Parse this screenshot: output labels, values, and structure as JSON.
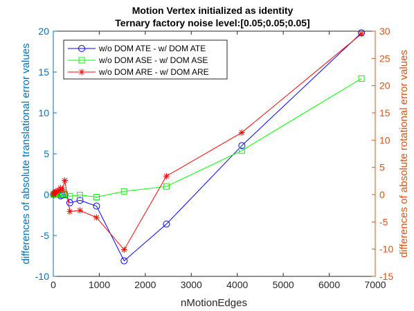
{
  "chart_data": {
    "type": "line",
    "title": "Motion Vertex initialized as identity",
    "subtitle": "Ternary factory noise level:[0.05;0.05;0.05]",
    "xlabel": "nMotionEdges",
    "ylabel_left": "differences of absolute translational error values",
    "ylabel_right": "differences of  absolute rotational error values",
    "xlim": [
      0,
      7000
    ],
    "ylim_left": [
      -10,
      20
    ],
    "ylim_right": [
      -15,
      30
    ],
    "x_ticks": [
      "0",
      "1000",
      "2000",
      "3000",
      "4000",
      "5000",
      "6000",
      "7000"
    ],
    "y_ticks_left": [
      "-10",
      "-5",
      "0",
      "5",
      "10",
      "15",
      "20"
    ],
    "y_ticks_right": [
      "-15",
      "-10",
      "-5",
      "0",
      "5",
      "10",
      "15",
      "20",
      "25",
      "30"
    ],
    "grid": false,
    "legend_position": "top-left",
    "series": [
      {
        "name": "w/o DOM ATE - w/ DOM ATE",
        "axis": "left",
        "color": "#0000FF",
        "marker": "circle",
        "x": [
          5,
          15,
          30,
          50,
          80,
          120,
          160,
          200,
          250,
          360,
          580,
          940,
          1540,
          2460,
          4100,
          6700
        ],
        "y": [
          0.0,
          0.05,
          0.05,
          0.1,
          0.15,
          0.05,
          -0.15,
          -0.05,
          0.0,
          -1.0,
          -0.7,
          -1.4,
          -8.1,
          -3.6,
          6.0,
          19.8
        ]
      },
      {
        "name": "w/o DOM ASE - w/ DOM ASE",
        "axis": "left",
        "color": "#00FF00",
        "marker": "square",
        "x": [
          5,
          15,
          30,
          50,
          80,
          120,
          160,
          200,
          250,
          360,
          580,
          940,
          1540,
          2460,
          4100,
          6700
        ],
        "y": [
          0.0,
          0.05,
          0.05,
          0.05,
          0.1,
          0.1,
          0.1,
          0.15,
          0.05,
          -0.2,
          -0.05,
          -0.3,
          0.4,
          1.0,
          5.4,
          14.2
        ]
      },
      {
        "name": "w/o DOM ARE - w/ DOM ARE",
        "axis": "right",
        "color": "#FF0000",
        "marker": "star",
        "x": [
          5,
          15,
          30,
          50,
          80,
          120,
          160,
          200,
          250,
          360,
          580,
          940,
          1540,
          2460,
          4100,
          6700
        ],
        "y": [
          0.0,
          0.2,
          0.4,
          0.6,
          0.5,
          0.8,
          1.2,
          0.9,
          2.6,
          -3.1,
          -2.9,
          -4.2,
          -10.1,
          3.4,
          11.4,
          29.5
        ]
      }
    ]
  }
}
